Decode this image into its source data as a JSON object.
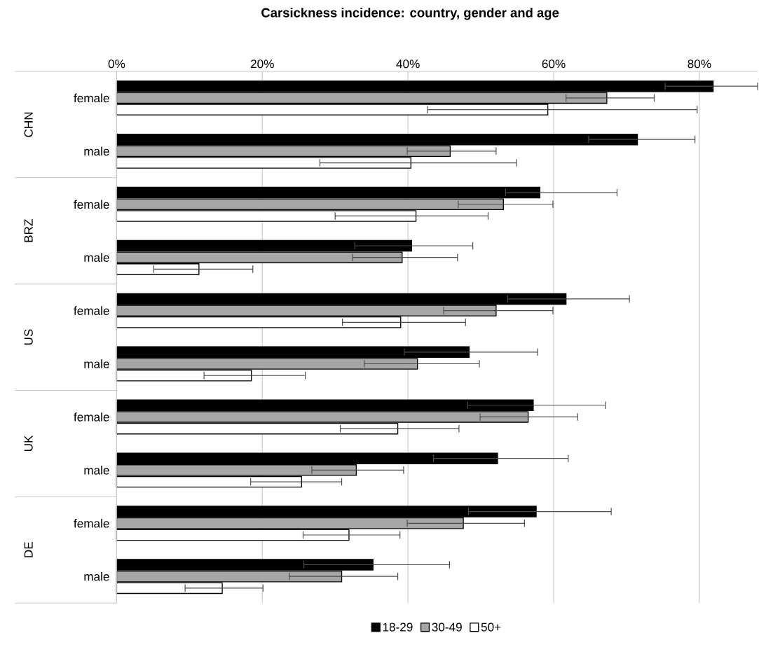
{
  "chart_data": {
    "type": "bar",
    "orientation": "horizontal",
    "title": "Carsickness incidence: country, gender and age",
    "categories": [
      "female",
      "male",
      "female",
      "male",
      "female",
      "male",
      "female",
      "male",
      "female",
      "male"
    ],
    "annotations": [
      "CHN",
      "BRZ",
      "US",
      "UK",
      "DE"
    ],
    "series": [
      {
        "name": "18-29",
        "color": "#000000",
        "values": [
          81.9,
          71.5,
          58.1,
          40.5,
          61.7,
          48.4,
          57.2,
          52.3,
          57.6,
          35.2
        ],
        "errors": [
          [
            75.3,
            88
          ],
          [
            64.8,
            79.4
          ],
          [
            53.4,
            68.7
          ],
          [
            32.7,
            48.9
          ],
          [
            53.7,
            70.4
          ],
          [
            39.5,
            57.8
          ],
          [
            48.2,
            67.1
          ],
          [
            43.5,
            62.0
          ],
          [
            48.3,
            67.9
          ],
          [
            25.7,
            45.7
          ]
        ]
      },
      {
        "name": "30-49",
        "color": "#a6a6a6",
        "values": [
          67.3,
          45.8,
          53.1,
          39.2,
          52.1,
          41.3,
          56.5,
          32.9,
          47.6,
          30.9
        ],
        "errors": [
          [
            61.7,
            73.8
          ],
          [
            39.9,
            52.1
          ],
          [
            46.9,
            59.9
          ],
          [
            32.4,
            46.8
          ],
          [
            44.9,
            59.9
          ],
          [
            34.0,
            49.8
          ],
          [
            49.9,
            63.3
          ],
          [
            26.8,
            39.4
          ],
          [
            39.9,
            56.0
          ],
          [
            23.7,
            38.6
          ]
        ]
      },
      {
        "name": "50+",
        "color": "#ffffff",
        "values": [
          59.2,
          40.4,
          41.1,
          11.3,
          39.0,
          18.5,
          38.6,
          25.4,
          31.9,
          14.5
        ],
        "errors": [
          [
            42.7,
            79.7
          ],
          [
            27.9,
            54.9
          ],
          [
            30.0,
            51.0
          ],
          [
            5.1,
            18.7
          ],
          [
            31.0,
            47.9
          ],
          [
            12.0,
            25.9
          ],
          [
            30.7,
            47.0
          ],
          [
            18.4,
            30.9
          ],
          [
            25.6,
            38.9
          ],
          [
            9.4,
            20.1
          ]
        ]
      }
    ],
    "xlim": [
      0,
      88
    ],
    "xticks": [
      {
        "value": 0,
        "label": "0%"
      },
      {
        "value": 20,
        "label": "20%"
      },
      {
        "value": 40,
        "label": "40%"
      },
      {
        "value": 60,
        "label": "60%"
      },
      {
        "value": 80,
        "label": "80%"
      }
    ],
    "grid": "x",
    "legend": "bottom"
  }
}
